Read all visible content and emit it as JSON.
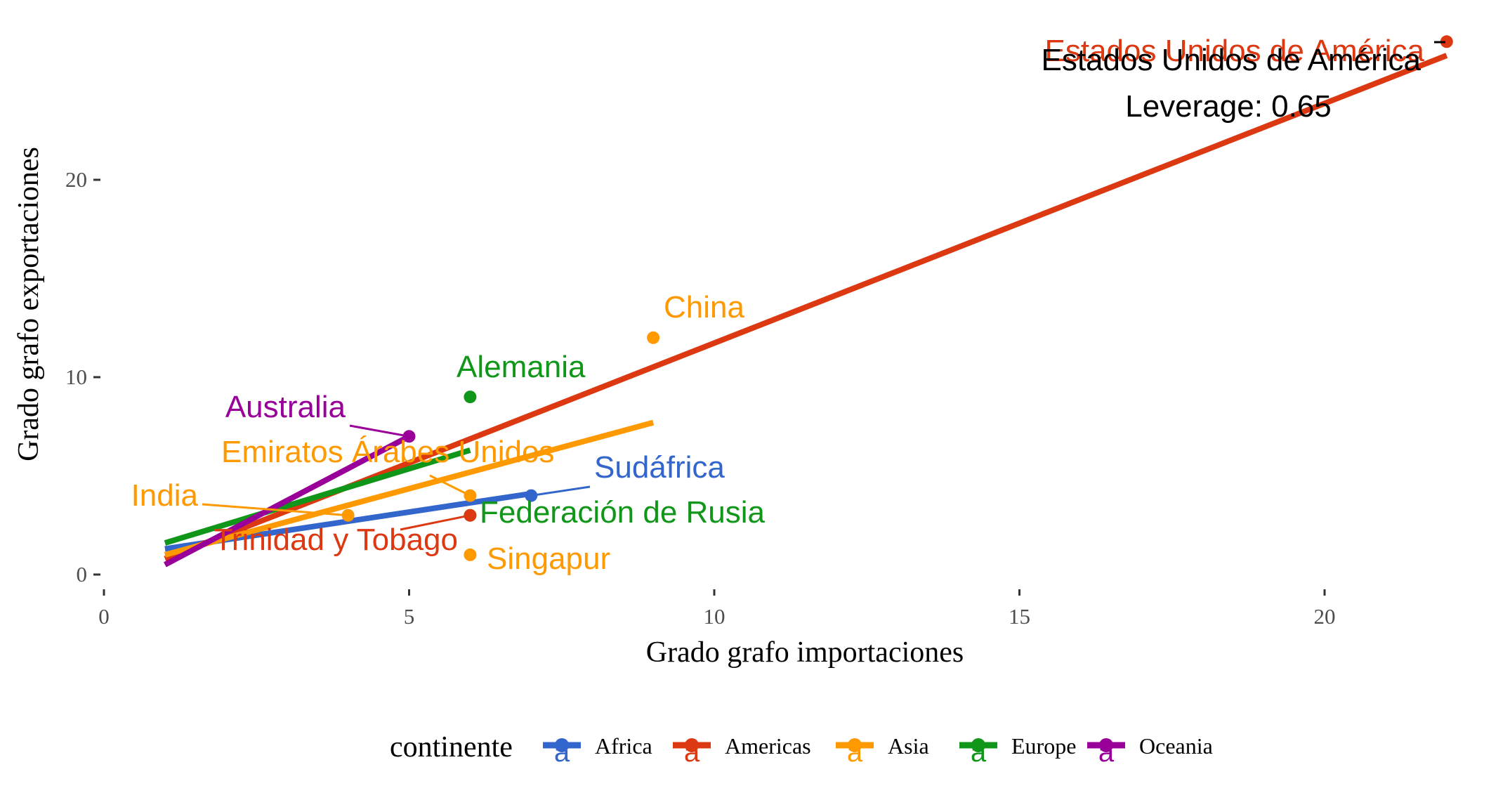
{
  "chart_data": {
    "type": "scatter",
    "title": "",
    "xlabel": "Grado grafo importaciones",
    "ylabel": "Grado grafo exportaciones",
    "xlim": [
      0,
      22.5
    ],
    "ylim": [
      -1,
      27.5
    ],
    "x_ticks": [
      0,
      5,
      10,
      15,
      20
    ],
    "y_ticks": [
      0,
      10,
      20
    ],
    "grid": false,
    "legend": {
      "title": "continente",
      "position": "bottom",
      "glyph": "a",
      "entries": [
        "Africa",
        "Americas",
        "Asia",
        "Europe",
        "Oceania"
      ]
    },
    "colors": {
      "Africa": "#3366cc",
      "Americas": "#dc3912",
      "Asia": "#ff9900",
      "Europe": "#109618",
      "Oceania": "#990099",
      "annotation": "#000000"
    },
    "points": [
      {
        "label": "Estados Unidos de América",
        "continent": "Americas",
        "x": 22,
        "y": 27
      },
      {
        "label": "China",
        "continent": "Asia",
        "x": 9,
        "y": 12
      },
      {
        "label": "Alemania",
        "continent": "Europe",
        "x": 6,
        "y": 9
      },
      {
        "label": "Australia",
        "continent": "Oceania",
        "x": 5,
        "y": 7
      },
      {
        "label": "Emiratos Árabes Unidos",
        "continent": "Asia",
        "x": 6,
        "y": 4
      },
      {
        "label": "Sudáfrica",
        "continent": "Africa",
        "x": 7,
        "y": 4
      },
      {
        "label": "India",
        "continent": "Asia",
        "x": 4,
        "y": 3
      },
      {
        "label": "Federación de Rusia",
        "continent": "Europe",
        "x": 6,
        "y": 3
      },
      {
        "label": "Trinidad y Tobago",
        "continent": "Americas",
        "x": 6,
        "y": 3
      },
      {
        "label": "Singapur",
        "continent": "Asia",
        "x": 6,
        "y": 1
      }
    ],
    "fit_lines": [
      {
        "continent": "Africa",
        "x": [
          1,
          7
        ],
        "y": [
          1.3,
          4.1
        ]
      },
      {
        "continent": "Americas",
        "x": [
          1,
          22
        ],
        "y": [
          0.8,
          26.3
        ]
      },
      {
        "continent": "Asia",
        "x": [
          1,
          9
        ],
        "y": [
          1.0,
          7.7
        ]
      },
      {
        "continent": "Europe",
        "x": [
          1,
          6
        ],
        "y": [
          1.6,
          6.3
        ]
      },
      {
        "continent": "Oceania",
        "x": [
          1,
          5
        ],
        "y": [
          0.5,
          7.0
        ]
      }
    ],
    "annotations": [
      {
        "text": "Estados Unidos de América",
        "color": "annotation"
      },
      {
        "text": "Leverage: 0.65",
        "color": "annotation"
      }
    ]
  }
}
